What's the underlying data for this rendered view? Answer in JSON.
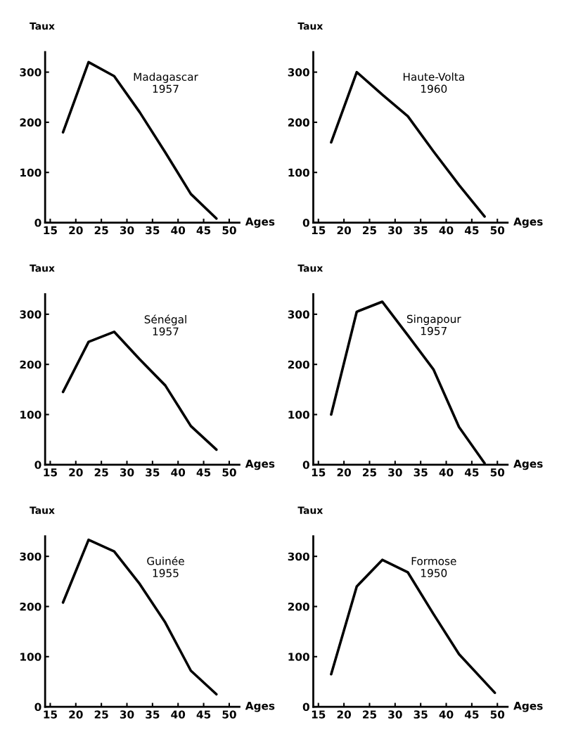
{
  "chart_data": [
    {
      "type": "line",
      "title": "Madagascar\n1957",
      "xlabel": "Ages",
      "ylabel": "Taux",
      "color": "#000000",
      "x": [
        17.5,
        22.5,
        27.5,
        32.5,
        37.5,
        42.5,
        47.5
      ],
      "values": [
        180,
        320,
        292,
        220,
        140,
        57,
        8
      ],
      "xlim": [
        14,
        52
      ],
      "ylim": [
        0,
        340
      ],
      "xticks": [
        15,
        20,
        25,
        30,
        35,
        40,
        45,
        50
      ],
      "yticks": [
        0,
        100,
        200,
        300
      ]
    },
    {
      "type": "line",
      "title": "Haute-Volta\n1960",
      "xlabel": "Ages",
      "ylabel": "Taux",
      "color": "#000000",
      "x": [
        17.5,
        22.5,
        27.5,
        32.5,
        37.5,
        42.5,
        47.5
      ],
      "values": [
        160,
        300,
        255,
        212,
        142,
        75,
        12
      ],
      "xlim": [
        14,
        52
      ],
      "ylim": [
        0,
        340
      ],
      "xticks": [
        15,
        20,
        25,
        30,
        35,
        40,
        45,
        50
      ],
      "yticks": [
        0,
        100,
        200,
        300
      ]
    },
    {
      "type": "line",
      "title": "Sénégal\n1957",
      "xlabel": "Ages",
      "ylabel": "Taux",
      "color": "#000000",
      "x": [
        17.5,
        22.5,
        27.5,
        32.5,
        37.5,
        42.5,
        47.5
      ],
      "values": [
        145,
        245,
        265,
        210,
        158,
        77,
        30
      ],
      "xlim": [
        14,
        52
      ],
      "ylim": [
        0,
        340
      ],
      "xticks": [
        15,
        20,
        25,
        30,
        35,
        40,
        45,
        50
      ],
      "yticks": [
        0,
        100,
        200,
        300
      ]
    },
    {
      "type": "line",
      "title": "Singapour\n1957",
      "xlabel": "Ages",
      "ylabel": "Taux",
      "color": "#000000",
      "x": [
        17.5,
        22.5,
        27.5,
        32.5,
        37.5,
        42.5,
        47.5
      ],
      "values": [
        100,
        305,
        325,
        258,
        190,
        75,
        3
      ],
      "xlim": [
        14,
        52
      ],
      "ylim": [
        0,
        340
      ],
      "xticks": [
        15,
        20,
        25,
        30,
        35,
        40,
        45,
        50
      ],
      "yticks": [
        0,
        100,
        200,
        300
      ]
    },
    {
      "type": "line",
      "title": "Guinée\n1955",
      "xlabel": "Ages",
      "ylabel": "Taux",
      "color": "#000000",
      "x": [
        17.5,
        22.5,
        27.5,
        32.5,
        37.5,
        42.5,
        47.5
      ],
      "values": [
        208,
        333,
        310,
        245,
        168,
        72,
        25
      ],
      "xlim": [
        14,
        52
      ],
      "ylim": [
        0,
        340
      ],
      "xticks": [
        15,
        20,
        25,
        30,
        35,
        40,
        45,
        50
      ],
      "yticks": [
        0,
        100,
        200,
        300
      ]
    },
    {
      "type": "line",
      "title": "Formose\n1950",
      "xlabel": "Ages",
      "ylabel": "Taux",
      "color": "#000000",
      "x": [
        17.5,
        22.5,
        27.5,
        32.5,
        37.5,
        42.5,
        49.5
      ],
      "values": [
        65,
        240,
        293,
        268,
        185,
        105,
        28
      ],
      "xlim": [
        14,
        52
      ],
      "ylim": [
        0,
        340
      ],
      "xticks": [
        15,
        20,
        25,
        30,
        35,
        40,
        45,
        50
      ],
      "yticks": [
        0,
        100,
        200,
        300
      ]
    }
  ]
}
